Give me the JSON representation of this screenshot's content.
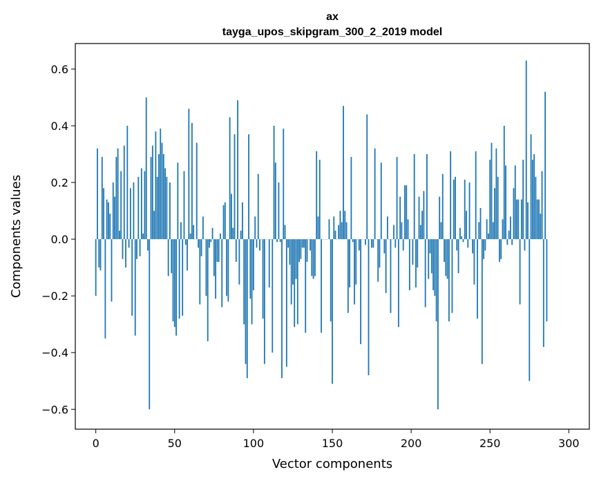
{
  "chart_data": {
    "type": "bar",
    "title": "ax",
    "subtitle": "tayga_upos_skipgram_300_2_2019 model",
    "xlabel": "Vector components",
    "ylabel": "Components values",
    "xlim": [
      -13,
      313
    ],
    "ylim": [
      -0.67,
      0.69
    ],
    "xticks": [
      0,
      50,
      100,
      150,
      200,
      250,
      300
    ],
    "yticks": [
      -0.6,
      -0.4,
      -0.2,
      0.0,
      0.2,
      0.4,
      0.6
    ],
    "ytick_labels": [
      "−0.6",
      "−0.4",
      "−0.2",
      "0.0",
      "0.2",
      "0.4",
      "0.6"
    ],
    "grid": false,
    "bar_color": "#1f77b4",
    "values": [
      -0.2,
      0.32,
      -0.1,
      -0.11,
      0.29,
      0.18,
      -0.35,
      0.14,
      0.13,
      0.09,
      -0.22,
      0.2,
      0.15,
      0.29,
      0.32,
      0.03,
      0.24,
      -0.07,
      0.33,
      -0.1,
      0.4,
      -0.03,
      0.18,
      -0.27,
      0.2,
      -0.34,
      -0.07,
      0.22,
      -0.06,
      0.25,
      0.02,
      0.24,
      0.5,
      -0.04,
      -0.6,
      0.29,
      0.33,
      0.1,
      0.38,
      0.22,
      0.3,
      0.39,
      0.34,
      0.3,
      0.25,
      0.22,
      -0.13,
      0.2,
      -0.12,
      -0.29,
      -0.31,
      -0.34,
      0.27,
      -0.28,
      0.06,
      -0.27,
      0.24,
      -0.02,
      -0.11,
      0.46,
      0.02,
      0.41,
      0.05,
      0.0,
      0.34,
      -0.03,
      -0.23,
      -0.06,
      0.08,
      0.0,
      -0.2,
      -0.36,
      -0.03,
      -0.01,
      0.04,
      -0.13,
      -0.21,
      -0.08,
      -0.08,
      0.02,
      -0.24,
      0.12,
      0.13,
      -0.2,
      -0.22,
      0.43,
      0.16,
      0.04,
      0.37,
      -0.08,
      0.49,
      -0.16,
      0.03,
      0.13,
      -0.3,
      -0.44,
      -0.49,
      0.37,
      -0.21,
      -0.3,
      -0.18,
      0.08,
      -0.03,
      0.23,
      -0.04,
      0.0,
      -0.28,
      -0.44,
      0.0,
      0.0,
      -0.17,
      0.0,
      -0.4,
      0.4,
      0.27,
      -0.01,
      0.2,
      -0.01,
      -0.49,
      0.39,
      0.05,
      -0.45,
      -0.03,
      -0.09,
      -0.23,
      -0.16,
      -0.31,
      -0.14,
      -0.3,
      -0.08,
      -0.07,
      -0.03,
      -0.03,
      -0.33,
      -0.08,
      0.0,
      -0.04,
      -0.13,
      -0.14,
      -0.13,
      0.31,
      0.08,
      0.28,
      -0.33,
      0.0,
      0.0,
      0.0,
      0.0,
      0.07,
      -0.29,
      -0.51,
      0.08,
      0.03,
      0.0,
      0.05,
      0.1,
      0.06,
      0.47,
      0.1,
      0.06,
      -0.26,
      -0.17,
      0.29,
      -0.01,
      -0.23,
      -0.16,
      0.0,
      -0.04,
      -0.37,
      0.0,
      0.0,
      -0.02,
      0.44,
      -0.48,
      0.0,
      -0.03,
      -0.03,
      0.32,
      0.0,
      -0.15,
      -0.1,
      0.27,
      0.0,
      -0.05,
      -0.19,
      0.08,
      0.0,
      -0.26,
      0.0,
      0.05,
      -0.03,
      0.29,
      -0.31,
      0.15,
      0.06,
      -0.04,
      0.19,
      0.19,
      0.07,
      -0.18,
      0.0,
      -0.09,
      0.3,
      -0.17,
      -0.1,
      0.15,
      0.05,
      0.1,
      0.17,
      -0.24,
      0.3,
      -0.14,
      -0.05,
      -0.12,
      -0.18,
      -0.2,
      -0.29,
      -0.6,
      0.15,
      0.06,
      0.23,
      -0.08,
      -0.13,
      -0.14,
      -0.29,
      0.31,
      -0.26,
      0.21,
      0.22,
      -0.04,
      -0.12,
      0.04,
      0.01,
      -0.01,
      0.21,
      0.1,
      -0.03,
      0.2,
      0.0,
      -0.05,
      -0.16,
      0.31,
      -0.28,
      0.06,
      0.11,
      -0.44,
      -0.07,
      -0.04,
      0.07,
      0.02,
      0.28,
      0.34,
      0.06,
      0.18,
      0.32,
      0.22,
      -0.08,
      -0.07,
      0.07,
      0.4,
      0.26,
      -0.02,
      0.03,
      0.08,
      -0.02,
      0.18,
      0.26,
      0.14,
      0.14,
      -0.23,
      0.14,
      0.28,
      -0.04,
      0.63,
      0.13,
      -0.5,
      0.37,
      0.28,
      0.3,
      0.22,
      0.14,
      0.14,
      0.09,
      0.24,
      -0.38,
      0.52,
      -0.29
    ]
  }
}
